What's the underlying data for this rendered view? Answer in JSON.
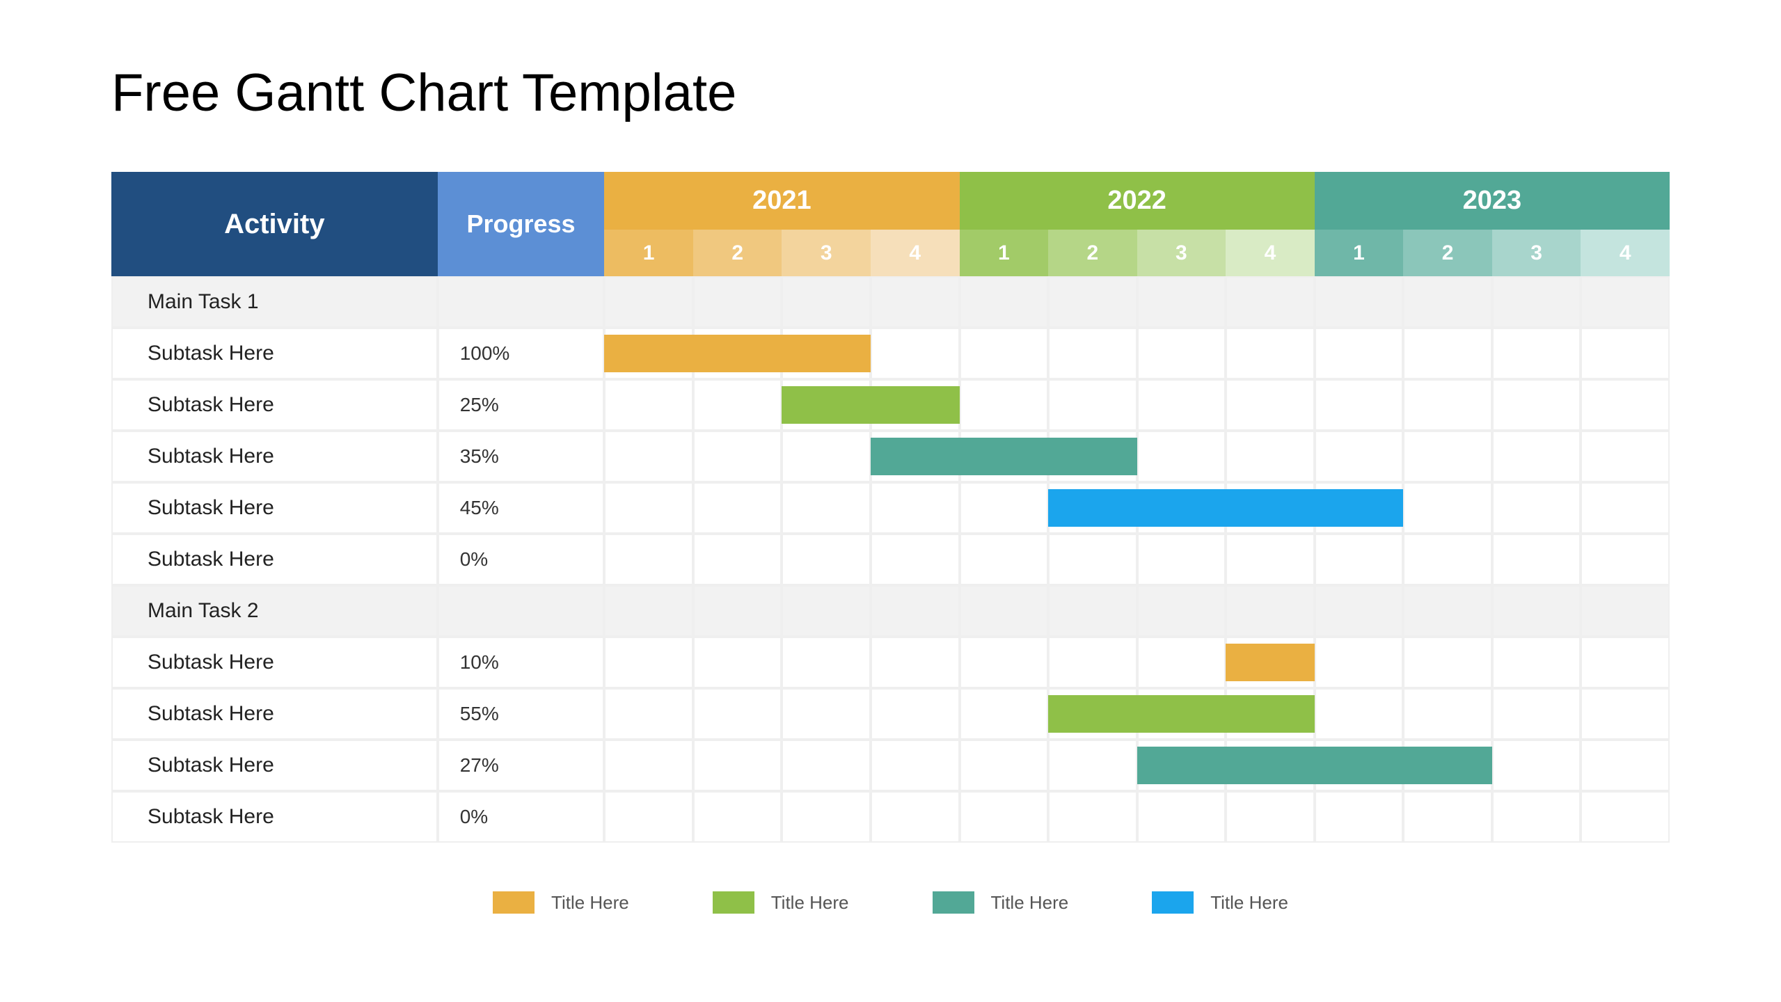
{
  "title": "Free Gantt Chart Template",
  "header": {
    "activity_label": "Activity",
    "progress_label": "Progress",
    "activity_bg": "#214e80",
    "progress_bg": "#5c8fd5",
    "years": [
      {
        "label": "2021",
        "bg": "#eab042",
        "quarters": [
          "1",
          "2",
          "3",
          "4"
        ],
        "q_bg": [
          "#edbc61",
          "#f0c87f",
          "#f3d49d",
          "#f6dfba"
        ]
      },
      {
        "label": "2022",
        "bg": "#8fc048",
        "quarters": [
          "1",
          "2",
          "3",
          "4"
        ],
        "q_bg": [
          "#a2cb68",
          "#b5d687",
          "#c7e0a6",
          "#d9ebc5"
        ]
      },
      {
        "label": "2023",
        "bg": "#52a896",
        "quarters": [
          "1",
          "2",
          "3",
          "4"
        ],
        "q_bg": [
          "#6fb7a8",
          "#8bc6ba",
          "#a8d5cc",
          "#c4e4de"
        ]
      }
    ]
  },
  "rows": [
    {
      "type": "main",
      "activity": "Main Task 1",
      "progress": ""
    },
    {
      "type": "sub",
      "activity": "Subtask Here",
      "progress": "100%",
      "bar_start": 0,
      "bar_span": 3,
      "color": "#eab042"
    },
    {
      "type": "sub",
      "activity": "Subtask Here",
      "progress": "25%",
      "bar_start": 2,
      "bar_span": 2,
      "color": "#8fc048"
    },
    {
      "type": "sub",
      "activity": "Subtask Here",
      "progress": "35%",
      "bar_start": 3,
      "bar_span": 3,
      "color": "#52a896"
    },
    {
      "type": "sub",
      "activity": "Subtask Here",
      "progress": "45%",
      "bar_start": 5,
      "bar_span": 4,
      "color": "#1ba5ed"
    },
    {
      "type": "sub",
      "activity": "Subtask Here",
      "progress": "0%"
    },
    {
      "type": "main",
      "activity": "Main Task 2",
      "progress": ""
    },
    {
      "type": "sub",
      "activity": "Subtask Here",
      "progress": "10%",
      "bar_start": 7,
      "bar_span": 1,
      "color": "#eab042"
    },
    {
      "type": "sub",
      "activity": "Subtask Here",
      "progress": "55%",
      "bar_start": 5,
      "bar_span": 3,
      "color": "#8fc048"
    },
    {
      "type": "sub",
      "activity": "Subtask Here",
      "progress": "27%",
      "bar_start": 6,
      "bar_span": 4,
      "color": "#52a896"
    },
    {
      "type": "sub",
      "activity": "Subtask Here",
      "progress": "0%"
    }
  ],
  "legend": [
    {
      "label": "Title Here",
      "color": "#eab042"
    },
    {
      "label": "Title Here",
      "color": "#8fc048"
    },
    {
      "label": "Title Here",
      "color": "#52a896"
    },
    {
      "label": "Title Here",
      "color": "#1ba5ed"
    }
  ],
  "style": {
    "row_bg_main": "#f2f2f2",
    "row_bg_sub": "#ffffff",
    "grid_border": "#efefef",
    "title_color": "#000000",
    "title_fontsize": 76,
    "body_fontsize": 30
  }
}
